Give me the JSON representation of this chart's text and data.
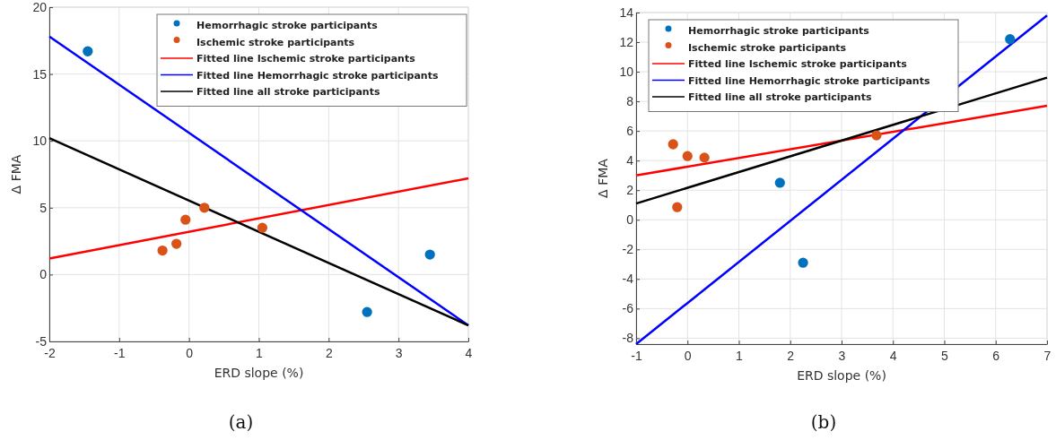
{
  "chart_data": [
    {
      "type": "scatter",
      "xlabel": "ERD slope (%)",
      "ylabel": "Δ FMA",
      "xlim": [
        -2,
        4
      ],
      "ylim": [
        -5,
        20
      ],
      "xticks": [
        -2,
        -1,
        0,
        1,
        2,
        3,
        4
      ],
      "yticks": [
        -5,
        0,
        5,
        10,
        15,
        20
      ],
      "grid": true,
      "legend": "top right",
      "marker": "circle",
      "annotations": [
        "(a)"
      ],
      "series": [
        {
          "name": "Hemorrhagic stroke participants",
          "color": "#0072bd",
          "x": [
            -1.45,
            2.55,
            3.45
          ],
          "values": [
            16.7,
            -2.8,
            1.5
          ]
        },
        {
          "name": "Ischemic stroke participants",
          "color": "#d95319",
          "x": [
            -0.38,
            -0.18,
            -0.05,
            0.22,
            1.05
          ],
          "values": [
            1.8,
            2.3,
            4.1,
            5.0,
            3.5
          ]
        },
        {
          "name": "Fitted line Ischemic stroke participants",
          "type": "line",
          "marker": "none",
          "color": "#ff0000",
          "x": [
            -2,
            4
          ],
          "values": [
            1.2,
            7.2
          ]
        },
        {
          "name": "Fitted line Hemorrhagic stroke participants",
          "type": "line",
          "marker": "none",
          "color": "#0000ff",
          "x": [
            -2,
            4
          ],
          "values": [
            17.8,
            -3.8
          ]
        },
        {
          "name": "Fitted line all stroke participants",
          "type": "line",
          "marker": "none",
          "color": "#000000",
          "x": [
            -2,
            4
          ],
          "values": [
            10.2,
            -3.8
          ]
        }
      ]
    },
    {
      "type": "scatter",
      "xlabel": "ERD slope (%)",
      "ylabel": "Δ FMA",
      "xlim": [
        -1,
        7
      ],
      "ylim": [
        -8.4,
        14
      ],
      "xticks": [
        -1,
        0,
        1,
        2,
        3,
        4,
        5,
        6,
        7
      ],
      "yticks": [
        -8,
        -6,
        -4,
        -2,
        0,
        2,
        4,
        6,
        8,
        10,
        12,
        14
      ],
      "grid": true,
      "legend": "top left",
      "marker": "circle",
      "annotations": [
        "(b)"
      ],
      "series": [
        {
          "name": "Hemorrhagic stroke participants",
          "color": "#0072bd",
          "x": [
            1.8,
            2.25,
            6.28
          ],
          "values": [
            2.5,
            -2.9,
            12.2
          ]
        },
        {
          "name": "Ischemic stroke participants",
          "color": "#d95319",
          "x": [
            -0.28,
            -0.2,
            0,
            0.33,
            3.68
          ],
          "values": [
            5.1,
            0.85,
            4.3,
            4.2,
            5.7
          ]
        },
        {
          "name": "Fitted line Ischemic stroke participants",
          "type": "line",
          "marker": "none",
          "color": "#ff0000",
          "x": [
            -1,
            7
          ],
          "values": [
            3.0,
            7.7
          ]
        },
        {
          "name": "Fitted line Hemorrhagic stroke participants",
          "type": "line",
          "marker": "none",
          "color": "#0000ff",
          "x": [
            -1,
            7
          ],
          "values": [
            -8.4,
            13.8
          ]
        },
        {
          "name": "Fitted line all stroke participants",
          "type": "line",
          "marker": "none",
          "color": "#000000",
          "x": [
            -1,
            7
          ],
          "values": [
            1.1,
            9.6
          ]
        }
      ]
    }
  ]
}
